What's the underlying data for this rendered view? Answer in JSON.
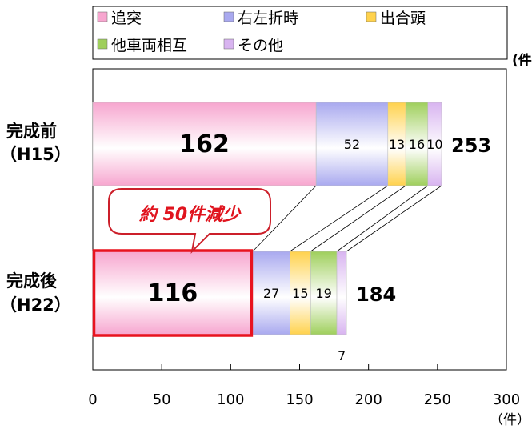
{
  "chart_data": {
    "type": "bar",
    "orientation": "horizontal",
    "stacked": true,
    "categories": [
      {
        "line1": "完成前",
        "line2": "（H15）"
      },
      {
        "line1": "完成後",
        "line2": "（H22）"
      }
    ],
    "series": [
      {
        "name": "追突",
        "color": "#f7a6cf",
        "values": [
          162,
          116
        ],
        "labels": [
          "162",
          "116"
        ]
      },
      {
        "name": "右左折時",
        "color": "#a9a9ef",
        "values": [
          52,
          27
        ],
        "labels": [
          "52",
          "27"
        ]
      },
      {
        "name": "出合頭",
        "color": "#ffd24d",
        "values": [
          13,
          15
        ],
        "labels": [
          "13",
          "15"
        ]
      },
      {
        "name": "他車両相互",
        "color": "#9fcf5c",
        "values": [
          16,
          19
        ],
        "labels": [
          "16",
          "19"
        ]
      },
      {
        "name": "その他",
        "color": "#d8b4f0",
        "values": [
          10,
          7
        ],
        "labels": [
          "10",
          "7"
        ]
      }
    ],
    "totals": [
      "253",
      "184"
    ],
    "xlim": [
      0,
      300
    ],
    "xticks": [
      "0",
      "50",
      "100",
      "150",
      "200",
      "250",
      "300"
    ],
    "xunit": "（件）",
    "legend_position": "top",
    "cut_unit": "(件",
    "callout": "約 50件減少"
  }
}
